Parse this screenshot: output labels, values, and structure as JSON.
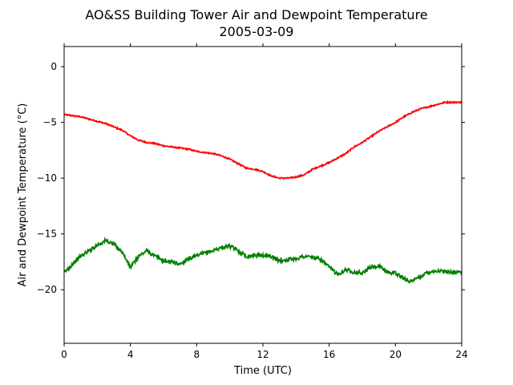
{
  "chart_data": {
    "type": "line",
    "title": "AO&SS Building Tower Air and Dewpoint Temperature",
    "subtitle": "2005-03-09",
    "xlabel": "Time (UTC)",
    "ylabel": "Air and Dewpoint Temperature (°C)",
    "xlim": [
      0,
      24
    ],
    "ylim": [
      -24.8,
      1.8
    ],
    "xticks": [
      0,
      4,
      8,
      12,
      16,
      20,
      24
    ],
    "yticks": [
      0,
      -5,
      -10,
      -15,
      -20
    ],
    "grid": false,
    "legend": "none",
    "series": [
      {
        "color": "#ff0000",
        "x": [
          0,
          0.5,
          1,
          1.5,
          2,
          2.5,
          3,
          3.5,
          4,
          4.5,
          5,
          5.5,
          6,
          6.5,
          7,
          7.5,
          8,
          8.5,
          9,
          9.5,
          10,
          10.5,
          11,
          11.5,
          12,
          12.5,
          13,
          13.5,
          14,
          14.5,
          15,
          15.5,
          16,
          16.5,
          17,
          17.5,
          18,
          18.5,
          19,
          19.5,
          20,
          20.5,
          21,
          21.5,
          22,
          22.5,
          23,
          23.5,
          24
        ],
        "values": [
          -4.3,
          -4.4,
          -4.5,
          -4.7,
          -4.9,
          -5.1,
          -5.4,
          -5.7,
          -6.2,
          -6.6,
          -6.8,
          -6.9,
          -7.1,
          -7.2,
          -7.3,
          -7.4,
          -7.6,
          -7.7,
          -7.8,
          -8.0,
          -8.3,
          -8.7,
          -9.1,
          -9.2,
          -9.4,
          -9.8,
          -10.0,
          -10.0,
          -9.9,
          -9.7,
          -9.2,
          -8.9,
          -8.6,
          -8.2,
          -7.8,
          -7.2,
          -6.8,
          -6.3,
          -5.8,
          -5.4,
          -5.0,
          -4.5,
          -4.1,
          -3.8,
          -3.6,
          -3.4,
          -3.2,
          -3.2,
          -3.2
        ]
      },
      {
        "color": "#008000",
        "x": [
          0,
          0.5,
          1,
          1.5,
          2,
          2.5,
          3,
          3.5,
          4,
          4.5,
          5,
          5.5,
          6,
          6.5,
          7,
          7.5,
          8,
          8.5,
          9,
          9.5,
          10,
          10.5,
          11,
          11.5,
          12,
          12.5,
          13,
          13.5,
          14,
          14.5,
          15,
          15.5,
          16,
          16.5,
          17,
          17.5,
          18,
          18.5,
          19,
          19.5,
          20,
          20.5,
          21,
          21.5,
          22,
          22.5,
          23,
          23.5,
          24
        ],
        "values": [
          -18.5,
          -17.7,
          -17.0,
          -16.5,
          -16.0,
          -15.6,
          -15.9,
          -16.6,
          -18.0,
          -17.0,
          -16.5,
          -17.0,
          -17.4,
          -17.5,
          -17.7,
          -17.2,
          -17.0,
          -16.7,
          -16.5,
          -16.2,
          -16.1,
          -16.5,
          -17.0,
          -16.9,
          -16.9,
          -17.0,
          -17.4,
          -17.3,
          -17.2,
          -17.0,
          -17.1,
          -17.3,
          -18.0,
          -18.6,
          -18.2,
          -18.4,
          -18.5,
          -18.0,
          -17.9,
          -18.4,
          -18.5,
          -19.0,
          -19.3,
          -18.8,
          -18.4,
          -18.3,
          -18.4,
          -18.4,
          -18.4
        ]
      }
    ]
  }
}
